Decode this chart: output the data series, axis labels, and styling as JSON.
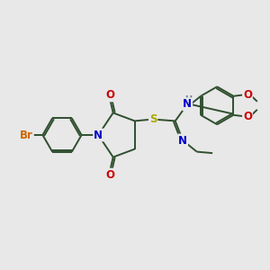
{
  "bg_color": "#e8e8e8",
  "atom_colors": {
    "C": "#2f4f2f",
    "N": "#0000cc",
    "O": "#cc0000",
    "S": "#aaaa00",
    "Br": "#cc6600",
    "H": "#708090"
  },
  "bond_color": "#2f4f2f",
  "bond_lw": 1.4,
  "font_size": 8.5
}
